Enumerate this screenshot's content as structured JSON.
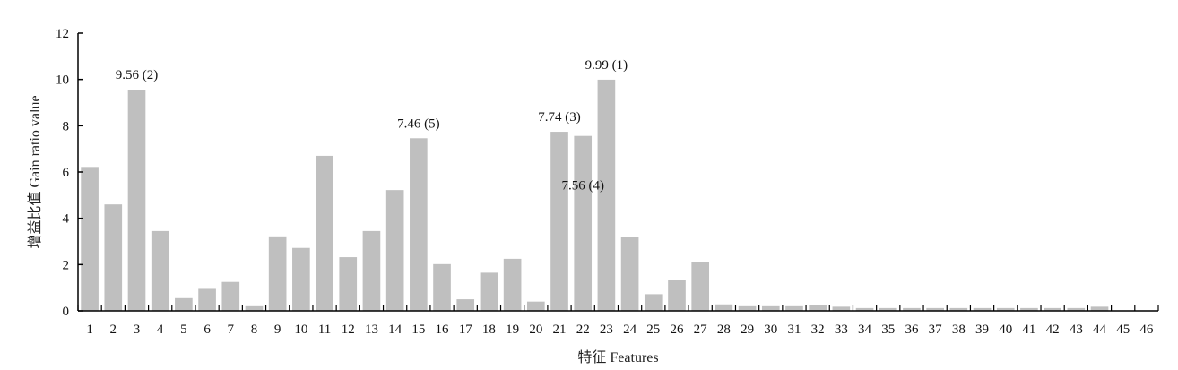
{
  "chart_data": {
    "type": "bar",
    "title": "",
    "xlabel": "特征 Features",
    "ylabel": "增益比值 Gain ratio value",
    "ylim": [
      0,
      12
    ],
    "yticks": [
      0,
      2,
      4,
      6,
      8,
      10,
      12
    ],
    "grid": false,
    "colors": {
      "bar": "#bfbfbf",
      "axis": "#000000"
    },
    "categories": [
      "1",
      "2",
      "3",
      "4",
      "5",
      "6",
      "7",
      "8",
      "9",
      "10",
      "11",
      "12",
      "13",
      "14",
      "15",
      "16",
      "17",
      "18",
      "19",
      "20",
      "21",
      "22",
      "23",
      "24",
      "25",
      "26",
      "27",
      "28",
      "29",
      "30",
      "31",
      "32",
      "33",
      "34",
      "35",
      "36",
      "37",
      "38",
      "39",
      "40",
      "41",
      "42",
      "43",
      "44",
      "45",
      "46"
    ],
    "values": [
      6.22,
      4.6,
      9.56,
      3.45,
      0.55,
      0.95,
      1.25,
      0.2,
      3.22,
      2.72,
      6.7,
      2.32,
      3.45,
      5.22,
      7.46,
      2.02,
      0.5,
      1.65,
      2.25,
      0.4,
      7.74,
      7.56,
      9.99,
      3.18,
      0.72,
      1.32,
      2.1,
      0.28,
      0.2,
      0.2,
      0.2,
      0.25,
      0.18,
      0.12,
      0.12,
      0.12,
      0.12,
      0.12,
      0.12,
      0.12,
      0.12,
      0.12,
      0.12,
      0.18,
      0.02,
      0.02
    ],
    "annotations": [
      {
        "category": "3",
        "text": "9.56 (2)",
        "placement": "above"
      },
      {
        "category": "15",
        "text": "7.46 (5)",
        "placement": "above"
      },
      {
        "category": "21",
        "text": "7.74 (3)",
        "placement": "above"
      },
      {
        "category": "22",
        "text": "7.56 (4)",
        "placement": "inside"
      },
      {
        "category": "23",
        "text": "9.99 (1)",
        "placement": "above"
      }
    ]
  }
}
